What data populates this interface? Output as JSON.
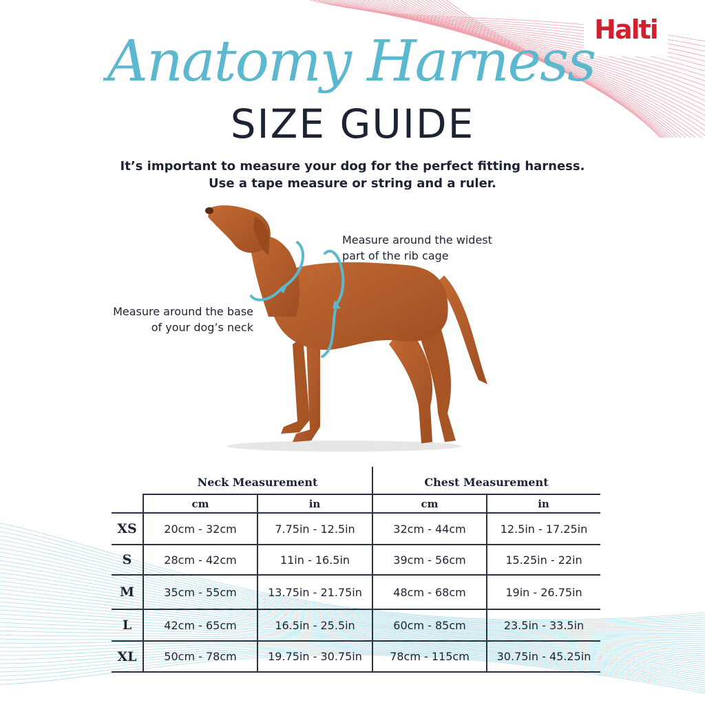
{
  "brand": {
    "logo_text": "Halti",
    "color": "#d4202e"
  },
  "title": {
    "script": "Anatomy Harness",
    "main": "SIZE GUIDE"
  },
  "subtitle": {
    "line1": "It’s important to measure your dog for the perfect fitting harness.",
    "line2": "Use a tape measure or string and a ruler."
  },
  "callouts": {
    "chest": {
      "line1": "Measure around the widest",
      "line2": "part of the rib cage"
    },
    "neck": {
      "line1": "Measure around the base",
      "line2": "of your dog’s neck"
    }
  },
  "table": {
    "groups": [
      "Neck Measurement",
      "Chest Measurement"
    ],
    "units": [
      "cm",
      "in",
      "cm",
      "in"
    ],
    "rows": [
      {
        "size": "XS",
        "cells": [
          "20cm - 32cm",
          "7.75in - 12.5in",
          "32cm - 44cm",
          "12.5in - 17.25in"
        ]
      },
      {
        "size": "S",
        "cells": [
          "28cm - 42cm",
          "11in - 16.5in",
          "39cm - 56cm",
          "15.25in - 22in"
        ]
      },
      {
        "size": "M",
        "cells": [
          "35cm - 55cm",
          "13.75in - 21.75in",
          "48cm - 68cm",
          "19in - 26.75in"
        ]
      },
      {
        "size": "L",
        "cells": [
          "42cm - 65cm",
          "16.5in - 25.5in",
          "60cm - 85cm",
          "23.5in - 33.5in"
        ]
      },
      {
        "size": "XL",
        "cells": [
          "50cm - 78cm",
          "19.75in - 30.75in",
          "78cm - 115cm",
          "30.75in - 45.25in"
        ]
      }
    ]
  },
  "colors": {
    "accent": "#5cb8cf",
    "text": "#1c2333",
    "wave_top": "#e0556a",
    "wave_bottom": "#7cc6d6",
    "dog": "#b5602e"
  }
}
